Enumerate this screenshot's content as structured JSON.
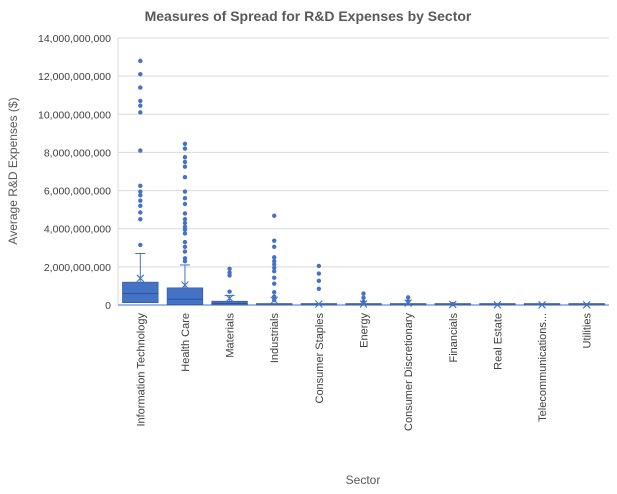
{
  "chart_data": {
    "type": "box",
    "title": "Measures of Spread for R&D Expenses by Sector",
    "xlabel": "Sector",
    "ylabel": "Average R&D Expenses ($)",
    "ylim": [
      0,
      14000000000
    ],
    "yticks": [
      0,
      2000000000,
      4000000000,
      6000000000,
      8000000000,
      10000000000,
      12000000000,
      14000000000
    ],
    "ytick_labels": [
      "0",
      "2,000,000,000",
      "4,000,000,000",
      "6,000,000,000",
      "8,000,000,000",
      "10,000,000,000",
      "12,000,000,000",
      "14,000,000,000"
    ],
    "grid": true,
    "color": "#4472C4",
    "categories": [
      "Information Technology",
      "Health Care",
      "Materials",
      "Industrials",
      "Consumer Staples",
      "Energy",
      "Consumer Discretionary",
      "Financials",
      "Real Estate",
      "Telecommunications...",
      "Utilities"
    ],
    "boxes": [
      {
        "q1": 120000000.0,
        "median": 600000000.0,
        "q3": 1200000000.0,
        "whisker_low": 0,
        "whisker_high": 2700000000.0,
        "mean": 1400000000.0,
        "outliers": [
          12800000000.0,
          12100000000.0,
          11400000000.0,
          10700000000.0,
          10450000000.0,
          10100000000.0,
          8100000000.0,
          6250000000.0,
          5950000000.0,
          5750000000.0,
          5470000000.0,
          5200000000.0,
          4850000000.0,
          4500000000.0,
          3150000000.0
        ]
      },
      {
        "q1": 20000000.0,
        "median": 300000000.0,
        "q3": 900000000.0,
        "whisker_low": 0,
        "whisker_high": 2100000000.0,
        "mean": 1050000000.0,
        "outliers": [
          8450000000.0,
          8200000000.0,
          7750000000.0,
          7500000000.0,
          7250000000.0,
          6700000000.0,
          5950000000.0,
          5600000000.0,
          5300000000.0,
          4800000000.0,
          4500000000.0,
          4300000000.0,
          4100000000.0,
          3950000000.0,
          3750000000.0,
          3300000000.0,
          3050000000.0,
          2800000000.0,
          2450000000.0,
          2300000000.0
        ]
      },
      {
        "q1": 0.0,
        "median": 80000000.0,
        "q3": 200000000.0,
        "whisker_low": 0,
        "whisker_high": 500000000.0,
        "mean": 350000000.0,
        "outliers": [
          1900000000.0,
          1700000000.0,
          1550000000.0,
          700000000.0
        ]
      },
      {
        "q1": 0.0,
        "median": 0.0,
        "q3": 20000000.0,
        "whisker_low": 0,
        "whisker_high": 20000000.0,
        "mean": 250000000.0,
        "outliers": [
          4680000000.0,
          3370000000.0,
          3050000000.0,
          2500000000.0,
          2300000000.0,
          2130000000.0,
          1950000000.0,
          1770000000.0,
          1430000000.0,
          1120000000.0,
          670000000.0,
          440000000.0,
          260000000.0
        ]
      },
      {
        "q1": 0.0,
        "median": 0.0,
        "q3": 10000000.0,
        "whisker_low": 0,
        "whisker_high": 10000000.0,
        "mean": 50000000.0,
        "outliers": [
          2050000000.0,
          1650000000.0,
          1270000000.0,
          850000000.0
        ]
      },
      {
        "q1": 0.0,
        "median": 0.0,
        "q3": 10000000.0,
        "whisker_low": 0,
        "whisker_high": 10000000.0,
        "mean": 50000000.0,
        "outliers": [
          600000000.0,
          380000000.0,
          170000000.0
        ]
      },
      {
        "q1": 0.0,
        "median": 0.0,
        "q3": 10000000.0,
        "whisker_low": 0,
        "whisker_high": 10000000.0,
        "mean": 100000000.0,
        "outliers": [
          400000000.0,
          200000000.0
        ]
      },
      {
        "q1": 0.0,
        "median": 0.0,
        "q3": 10000000.0,
        "whisker_low": 0,
        "whisker_high": 10000000.0,
        "mean": 30000000.0,
        "outliers": [
          50000000.0
        ]
      },
      {
        "q1": 0.0,
        "median": 0.0,
        "q3": 0.0,
        "whisker_low": 0,
        "whisker_high": 0.0,
        "mean": 10000000.0,
        "outliers": []
      },
      {
        "q1": 0.0,
        "median": 0.0,
        "q3": 0.0,
        "whisker_low": 0,
        "whisker_high": 0.0,
        "mean": 10000000.0,
        "outliers": []
      },
      {
        "q1": 0.0,
        "median": 0.0,
        "q3": 0.0,
        "whisker_low": 0,
        "whisker_high": 0.0,
        "mean": 10000000.0,
        "outliers": []
      }
    ]
  }
}
